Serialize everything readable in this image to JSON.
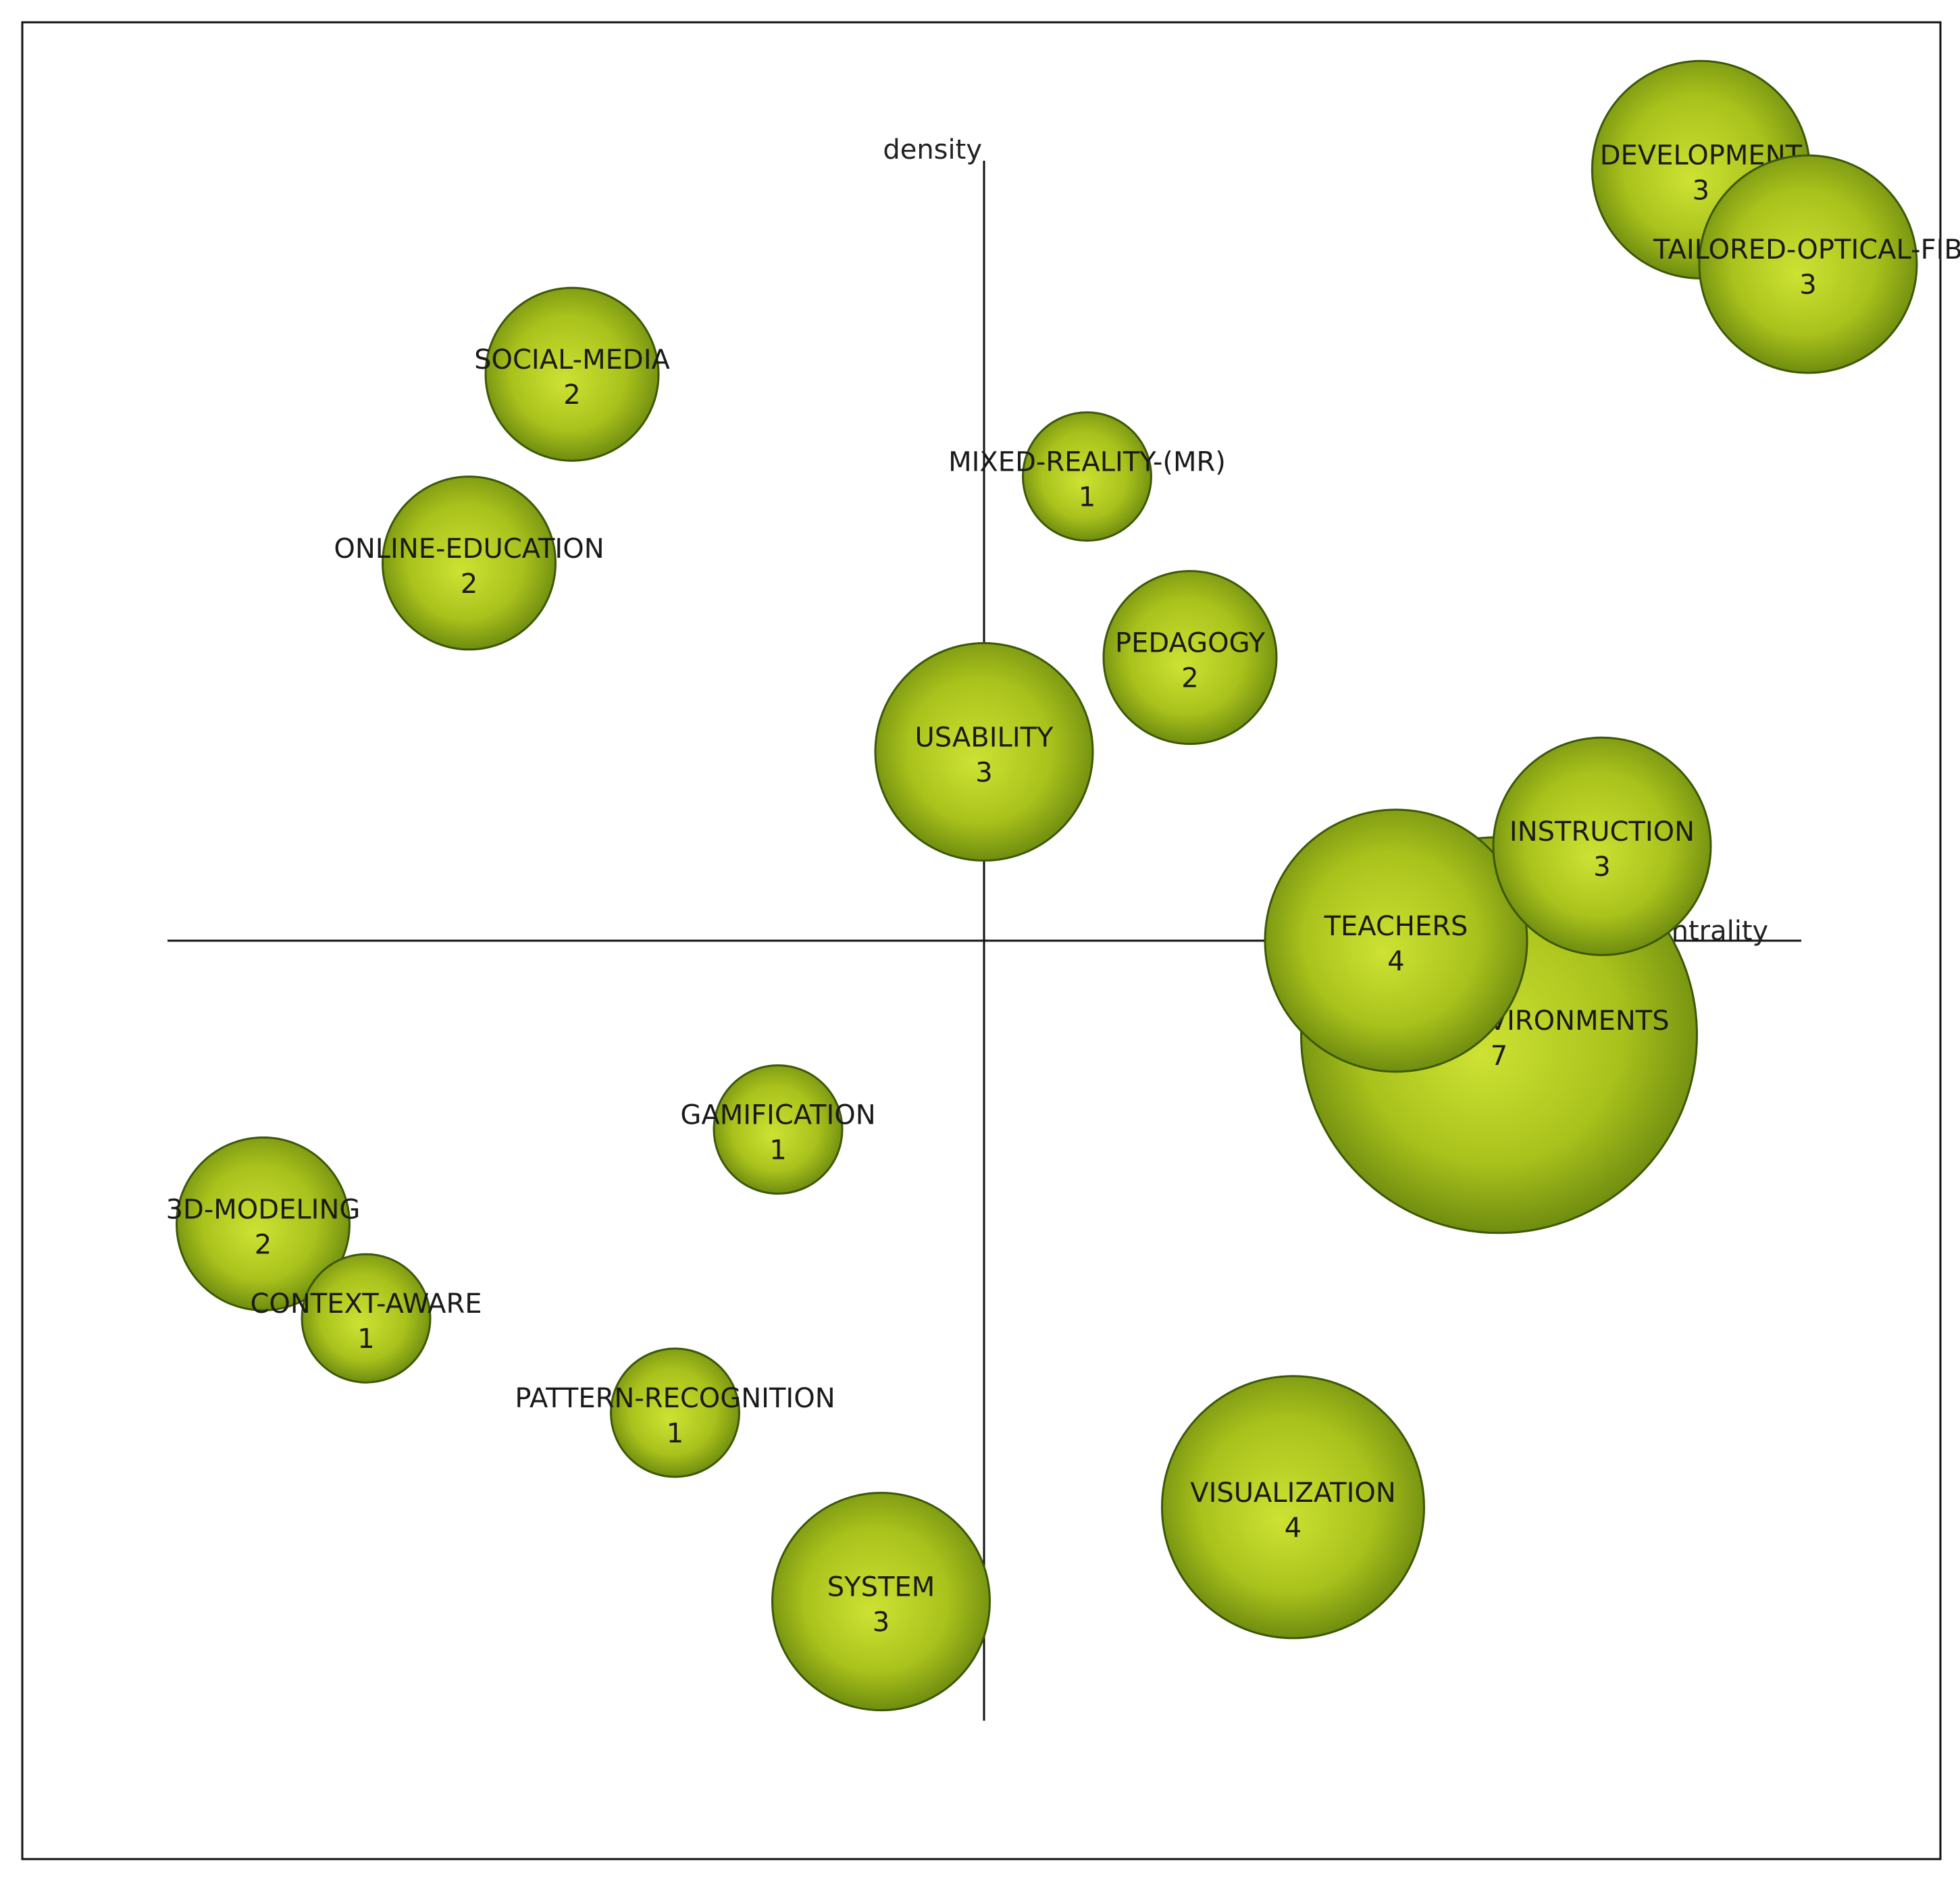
{
  "chart_data": {
    "type": "scatter",
    "title": "",
    "xlabel": "centrality",
    "ylabel": "density",
    "xlim": [
      -1,
      1
    ],
    "ylim": [
      -1,
      1
    ],
    "grid": false,
    "bubble_color": "#a9c21c",
    "points": [
      {
        "label": "DEVELOPMENT",
        "count": "3",
        "x": 0.87,
        "y": 0.98,
        "size": 3
      },
      {
        "label": "TAILORED-OPTICAL-FIB",
        "count": "3",
        "x": 1.0,
        "y": 0.86,
        "size": 3
      },
      {
        "label": "SOCIAL-MEDIA",
        "count": "2",
        "x": -0.5,
        "y": 0.72,
        "size": 2
      },
      {
        "label": "MIXED-REALITY-(MR)",
        "count": "1",
        "x": 0.125,
        "y": 0.59,
        "size": 1
      },
      {
        "label": "ONLINE-EDUCATION",
        "count": "2",
        "x": -0.625,
        "y": 0.48,
        "size": 2
      },
      {
        "label": "PEDAGOGY",
        "count": "2",
        "x": 0.25,
        "y": 0.36,
        "size": 2
      },
      {
        "label": "USABILITY",
        "count": "3",
        "x": 0.0,
        "y": 0.24,
        "size": 3
      },
      {
        "label": "INSTRUCTION",
        "count": "3",
        "x": 0.75,
        "y": 0.12,
        "size": 3
      },
      {
        "label": "VIRTUAL-ENVIRONMENTS",
        "count": "7",
        "x": 0.625,
        "y": -0.12,
        "size": 7
      },
      {
        "label": "TEACHERS",
        "count": "4",
        "x": 0.5,
        "y": 0.0,
        "size": 4
      },
      {
        "label": "GAMIFICATION",
        "count": "1",
        "x": -0.25,
        "y": -0.24,
        "size": 1
      },
      {
        "label": "3D-MODELING",
        "count": "2",
        "x": -0.875,
        "y": -0.36,
        "size": 2
      },
      {
        "label": "CONTEXT-AWARE",
        "count": "1",
        "x": -0.75,
        "y": -0.48,
        "size": 1
      },
      {
        "label": "PATTERN-RECOGNITION",
        "count": "1",
        "x": -0.375,
        "y": -0.6,
        "size": 1
      },
      {
        "label": "VISUALIZATION",
        "count": "4",
        "x": 0.375,
        "y": -0.72,
        "size": 4
      },
      {
        "label": "SYSTEM",
        "count": "3",
        "x": -0.125,
        "y": -0.84,
        "size": 3
      }
    ]
  }
}
